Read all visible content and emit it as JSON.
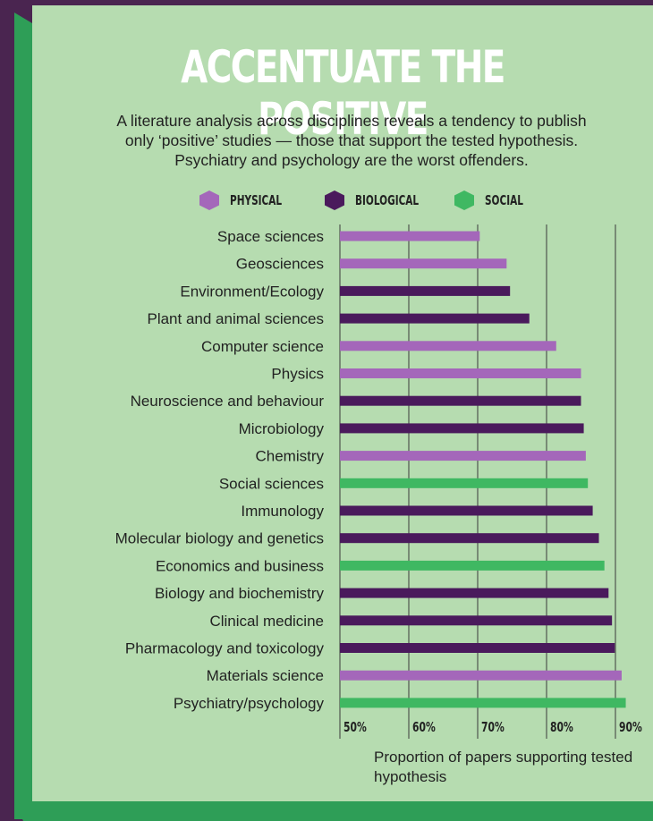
{
  "colors": {
    "Physical": "#a467ba",
    "Biological": "#4a1a5c",
    "Social": "#3fb862",
    "background": "#b6dcb0",
    "frame": "#4a2550"
  },
  "header": {
    "title": "ACCENTUATE THE POSITIVE",
    "subtitle_lines": [
      "A literature analysis across disciplines reveals a tendency to publish",
      "only ‘positive’ studies — those that support the tested hypothesis.",
      "Psychiatry and psychology are the worst offenders."
    ]
  },
  "legend": [
    {
      "label": "PHYSICAL",
      "group": "Physical"
    },
    {
      "label": "BIOLOGICAL",
      "group": "Biological"
    },
    {
      "label": "SOCIAL",
      "group": "Social"
    }
  ],
  "chart_data": {
    "type": "bar",
    "orientation": "horizontal",
    "title": "ACCENTUATE THE POSITIVE",
    "xlabel": "Proportion of papers supporting tested hypothesis",
    "xlim": [
      50,
      92
    ],
    "xticks": [
      "50%",
      "60%",
      "70%",
      "80%",
      "90%"
    ],
    "xtick_values": [
      50,
      60,
      70,
      80,
      90
    ],
    "grid": true,
    "legend_placement": "top",
    "categories": [
      "Space sciences",
      "Geosciences",
      "Environment/Ecology",
      "Plant and animal sciences",
      "Computer science",
      "Physics",
      "Neuroscience and behaviour",
      "Microbiology",
      "Chemistry",
      "Social sciences",
      "Immunology",
      "Molecular biology and genetics",
      "Economics and business",
      "Biology and biochemistry",
      "Clinical medicine",
      "Pharmacology and toxicology",
      "Materials science",
      "Psychiatry/psychology"
    ],
    "values": [
      70.3,
      74.2,
      74.7,
      77.5,
      81.4,
      85.0,
      85.0,
      85.4,
      85.7,
      86.0,
      86.7,
      87.6,
      88.4,
      89.0,
      89.5,
      89.9,
      90.9,
      91.5
    ],
    "groups": [
      "Physical",
      "Physical",
      "Biological",
      "Biological",
      "Physical",
      "Physical",
      "Biological",
      "Biological",
      "Physical",
      "Social",
      "Biological",
      "Biological",
      "Social",
      "Biological",
      "Biological",
      "Biological",
      "Physical",
      "Social"
    ]
  }
}
